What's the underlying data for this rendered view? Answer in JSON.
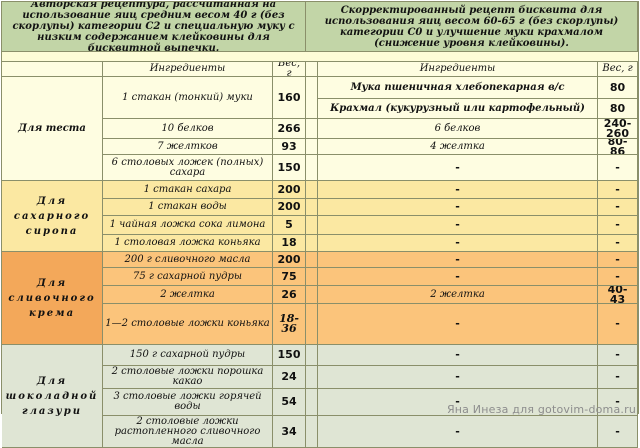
{
  "header": {
    "left": "Авторская рецептура, рассчитанная на использование яиц средним весом 40 г (без скорлупы) категории С2 и специальную муку с низким содержанием клейковины для бисквитной выпечки.",
    "right": "Скорректированный рецепт бисквита для использования яиц весом 60-65 г (без скорлупы) категории С0 и улучшение муки крахмалом (снижение уровня клейковины)."
  },
  "columns": {
    "ingredients": "Ингредиенты",
    "weight": "Вес, г"
  },
  "sections": {
    "dough": "Для теста",
    "syrup": "Для сахарного сиропа",
    "cream": "Для сливочного крема",
    "glaze": "Для шоколадной глазури"
  },
  "rows": {
    "d1": {
      "ing": "1 стакан (тонкий) муки",
      "w": "160"
    },
    "d1a": {
      "ing2": "Мука пшеничная хлебопекарная в/с",
      "w2": "80"
    },
    "d1b": {
      "ing2": "Крахмал (кукурузный или картофельный)",
      "w2": "80"
    },
    "d2": {
      "ing": "10 белков",
      "w": "266",
      "ing2": "6 белков",
      "w2": "240-260"
    },
    "d3": {
      "ing": "7 желтков",
      "w": "93",
      "ing2": "4 желтка",
      "w2": "80-86"
    },
    "d4": {
      "ing": "6 столовых ложек (полных) сахара",
      "w": "150",
      "ing2": "-",
      "w2": "-"
    },
    "s1": {
      "ing": "1 стакан сахара",
      "w": "200",
      "ing2": "-",
      "w2": "-"
    },
    "s2": {
      "ing": "1 стакан воды",
      "w": "200",
      "ing2": "-",
      "w2": "-"
    },
    "s3": {
      "ing": "1 чайная ложка сока лимона",
      "w": "5",
      "ing2": "-",
      "w2": "-"
    },
    "s4": {
      "ing": "1 столовая ложка коньяка",
      "w": "18",
      "ing2": "-",
      "w2": "-"
    },
    "c1": {
      "ing": "200 г сливочного масла",
      "w": "200",
      "ing2": "-",
      "w2": "-"
    },
    "c2": {
      "ing": "75 г сахарной пудры",
      "w": "75",
      "ing2": "-",
      "w2": "-"
    },
    "c3": {
      "ing": "2 желтка",
      "w": "26",
      "ing2": "2 желтка",
      "w2": "40-43"
    },
    "c4": {
      "ing": "1—2 столовые ложки коньяка",
      "w": "18-36",
      "ing2": "-",
      "w2": "-"
    },
    "g1": {
      "ing": "150 г сахарной пудры",
      "w": "150",
      "ing2": "-",
      "w2": "-"
    },
    "g2": {
      "ing": "2 столовые ложки порошка какао",
      "w": "24",
      "ing2": "-",
      "w2": "-"
    },
    "g3": {
      "ing": "3 столовые ложки горячей воды",
      "w": "54",
      "ing2": "-",
      "w2": "-"
    },
    "g4": {
      "ing": "2 столовые ложки растопленного сливочного масла",
      "w": "34",
      "ing2": "-",
      "w2": "-"
    }
  },
  "watermark": "Яна Инеза для gotovim-doma.ru",
  "colors": {
    "header_bg": "#c2d5a7",
    "dough_bg": "#fefde1",
    "syrup_bg": "#fbe8a2",
    "cream_bg": "#fbc47b",
    "cream_section": "#f3a85a",
    "glaze_bg": "#dfe5d4"
  }
}
